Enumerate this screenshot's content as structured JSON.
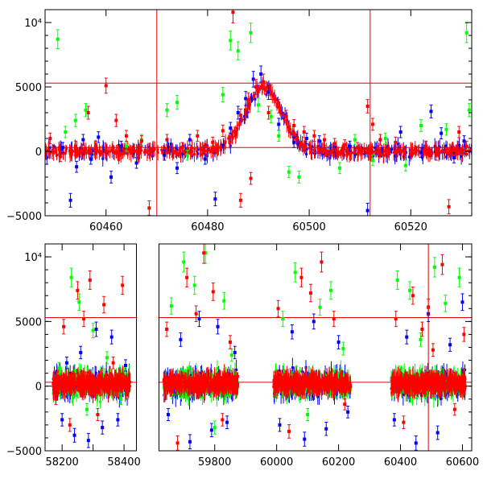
{
  "chart_data": [
    {
      "type": "scatter",
      "panel": "top",
      "title": "",
      "xlabel": "",
      "ylabel": "",
      "xlim": [
        60448,
        60532
      ],
      "ylim": [
        -5000,
        11000
      ],
      "x_ticks": [
        60460,
        60480,
        60500,
        60520
      ],
      "y_ticks": [
        -5000,
        0,
        5000,
        10000
      ],
      "x_tick_labels": [
        "60460",
        "60480",
        "60500",
        "60520"
      ],
      "y_tick_labels": [
        "−5000",
        "0",
        "5000",
        "10⁴"
      ],
      "reference_lines": {
        "horizontal": [
          300,
          5300
        ],
        "vertical": [
          60470,
          60512
        ]
      },
      "series": [
        {
          "color": "#0000ff",
          "points": [
            [
              60451.5,
              300
            ],
            [
              60453,
              -3800
            ],
            [
              60454.2,
              -1200
            ],
            [
              60455.5,
              900
            ],
            [
              60457,
              -600
            ],
            [
              60458.5,
              1100
            ],
            [
              60461,
              -2000
            ],
            [
              60463,
              400
            ],
            [
              60466,
              -900
            ],
            [
              60471.5,
              -300
            ],
            [
              60474,
              -1300
            ],
            [
              60476.5,
              900
            ],
            [
              60479.5,
              -600
            ],
            [
              60481.5,
              -3700
            ],
            [
              60484.5,
              1800
            ],
            [
              60486,
              3000
            ],
            [
              60487.5,
              4100
            ],
            [
              60489,
              5600
            ],
            [
              60490.5,
              6000
            ],
            [
              60492,
              4600
            ],
            [
              60494,
              2100
            ],
            [
              60497,
              700
            ],
            [
              60499.5,
              1000
            ],
            [
              60502,
              800
            ],
            [
              60505,
              300
            ],
            [
              60508,
              400
            ],
            [
              60511.5,
              -4600
            ],
            [
              60514,
              900
            ],
            [
              60518,
              1500
            ],
            [
              60522,
              -100
            ],
            [
              60524,
              3100
            ],
            [
              60526,
              1400
            ],
            [
              60528.5,
              -500
            ],
            [
              60530.5,
              800
            ]
          ]
        },
        {
          "color": "#00ff00",
          "points": [
            [
              60450.5,
              8700
            ],
            [
              60452,
              1500
            ],
            [
              60454,
              2400
            ],
            [
              60456,
              3200
            ],
            [
              60464,
              400
            ],
            [
              60467,
              900
            ],
            [
              60472,
              3200
            ],
            [
              60474,
              3800
            ],
            [
              60476,
              -300
            ],
            [
              60483,
              4400
            ],
            [
              60484.5,
              8600
            ],
            [
              60486,
              7800
            ],
            [
              60488.5,
              9200
            ],
            [
              60490,
              3600
            ],
            [
              60492.5,
              2700
            ],
            [
              60494,
              1200
            ],
            [
              60496,
              -1600
            ],
            [
              60498,
              -2000
            ],
            [
              60506,
              -1300
            ],
            [
              60509,
              900
            ],
            [
              60512.5,
              -700
            ],
            [
              60515,
              1000
            ],
            [
              60519,
              -1100
            ],
            [
              60522,
              2000
            ],
            [
              60527,
              1700
            ],
            [
              60531,
              9200
            ],
            [
              60531.5,
              3200
            ]
          ]
        },
        {
          "color": "#ff0000",
          "points": [
            [
              60449,
              1000
            ],
            [
              60451,
              -400
            ],
            [
              60454,
              400
            ],
            [
              60456.5,
              3000
            ],
            [
              60458,
              400
            ],
            [
              60460,
              5100
            ],
            [
              60462,
              2400
            ],
            [
              60464,
              1200
            ],
            [
              60467,
              800
            ],
            [
              60468.5,
              -4400
            ],
            [
              60472,
              900
            ],
            [
              60475,
              300
            ],
            [
              60478,
              1200
            ],
            [
              60481,
              700
            ],
            [
              60483,
              1600
            ],
            [
              60485,
              10800
            ],
            [
              60486.5,
              2800
            ],
            [
              60488,
              4000
            ],
            [
              60489.5,
              5000
            ],
            [
              60491,
              5400
            ],
            [
              60492.5,
              4600
            ],
            [
              60494,
              3500
            ],
            [
              60495.5,
              2700
            ],
            [
              60497,
              2000
            ],
            [
              60499,
              1500
            ],
            [
              60501,
              1200
            ],
            [
              60503,
              900
            ],
            [
              60505,
              600
            ],
            [
              60507,
              500
            ],
            [
              60509.5,
              300
            ],
            [
              60511.5,
              3500
            ],
            [
              60512.5,
              2100
            ],
            [
              60514,
              900
            ],
            [
              60517,
              700
            ],
            [
              60520,
              -200
            ],
            [
              60523,
              400
            ],
            [
              60525,
              -300
            ],
            [
              60527.5,
              -4300
            ],
            [
              60529.5,
              1500
            ],
            [
              60531,
              400
            ],
            [
              60486.5,
              -3800
            ],
            [
              60488.5,
              -2100
            ],
            [
              60492,
              3000
            ]
          ]
        }
      ]
    },
    {
      "type": "scatter",
      "panel": "bottom",
      "title": "",
      "xlabel": "",
      "ylabel": "",
      "xlim": [
        58145,
        60630
      ],
      "ylim": [
        -5000,
        11000
      ],
      "x_axis_break": [
        58440,
        59620
      ],
      "x_ticks": [
        58200,
        58300,
        58400,
        59800,
        60000,
        60200,
        60400,
        60600
      ],
      "x_tick_labels": [
        "58200",
        "58400",
        "59800",
        "60000",
        "60200",
        "60400",
        "60600"
      ],
      "x_labelled_ticks": [
        58200,
        58400,
        59800,
        60000,
        60200,
        60400,
        60600
      ],
      "y_ticks": [
        -5000,
        0,
        5000,
        10000
      ],
      "y_tick_labels": [
        "−5000",
        "0",
        "5000",
        "10⁴"
      ],
      "reference_lines": {
        "horizontal": [
          300,
          5300
        ],
        "vertical": [
          60490
        ]
      },
      "observing_seasons": [
        [
          58170,
          58420
        ],
        [
          59635,
          59875
        ],
        [
          59990,
          60240
        ],
        [
          60370,
          60610
        ]
      ],
      "series": [
        {
          "color": "#0000ff",
          "points": [
            [
              58200,
              -2600
            ],
            [
              58215,
              1800
            ],
            [
              58240,
              -3800
            ],
            [
              58260,
              2600
            ],
            [
              58285,
              -4200
            ],
            [
              58310,
              4400
            ],
            [
              58330,
              -3200
            ],
            [
              58360,
              3800
            ],
            [
              58380,
              -2600
            ],
            [
              58405,
              1600
            ],
            [
              59650,
              -2200
            ],
            [
              59690,
              3600
            ],
            [
              59720,
              -4300
            ],
            [
              59750,
              5200
            ],
            [
              59790,
              -3400
            ],
            [
              59810,
              4600
            ],
            [
              59840,
              -2800
            ],
            [
              59865,
              2600
            ],
            [
              60010,
              -3000
            ],
            [
              60050,
              4200
            ],
            [
              60090,
              -4100
            ],
            [
              60120,
              5000
            ],
            [
              60160,
              -3300
            ],
            [
              60200,
              3400
            ],
            [
              60230,
              -2000
            ],
            [
              60380,
              -2600
            ],
            [
              60420,
              3800
            ],
            [
              60450,
              -4400
            ],
            [
              60490,
              5600
            ],
            [
              60520,
              -3600
            ],
            [
              60560,
              3200
            ],
            [
              60600,
              6500
            ]
          ]
        },
        {
          "color": "#00ff00",
          "points": [
            [
              58190,
              1400
            ],
            [
              58230,
              8400
            ],
            [
              58255,
              6500
            ],
            [
              58280,
              -1800
            ],
            [
              58300,
              4300
            ],
            [
              58345,
              2200
            ],
            [
              58390,
              -1000
            ],
            [
              59660,
              6200
            ],
            [
              59700,
              9600
            ],
            [
              59735,
              7800
            ],
            [
              59770,
              10300
            ],
            [
              59800,
              -3200
            ],
            [
              59830,
              6600
            ],
            [
              59855,
              2400
            ],
            [
              60020,
              5200
            ],
            [
              60060,
              8800
            ],
            [
              60100,
              -2200
            ],
            [
              60140,
              6100
            ],
            [
              60175,
              7400
            ],
            [
              60215,
              2900
            ],
            [
              60390,
              8200
            ],
            [
              60430,
              7400
            ],
            [
              60465,
              3600
            ],
            [
              60510,
              9200
            ],
            [
              60545,
              6400
            ],
            [
              60590,
              8400
            ]
          ]
        },
        {
          "color": "#ff0000",
          "points": [
            [
              58180,
              -1000
            ],
            [
              58205,
              4600
            ],
            [
              58225,
              -3000
            ],
            [
              58250,
              7400
            ],
            [
              58270,
              5200
            ],
            [
              58290,
              8200
            ],
            [
              58315,
              -2200
            ],
            [
              58335,
              6300
            ],
            [
              58365,
              1800
            ],
            [
              58395,
              7800
            ],
            [
              58410,
              -600
            ],
            [
              59645,
              4400
            ],
            [
              59680,
              -4400
            ],
            [
              59710,
              8400
            ],
            [
              59740,
              5600
            ],
            [
              59765,
              10300
            ],
            [
              59795,
              7300
            ],
            [
              59825,
              -2600
            ],
            [
              59850,
              3400
            ],
            [
              60005,
              6000
            ],
            [
              60040,
              -3500
            ],
            [
              60080,
              8400
            ],
            [
              60110,
              7200
            ],
            [
              60145,
              9600
            ],
            [
              60185,
              5200
            ],
            [
              60220,
              -1400
            ],
            [
              60385,
              5200
            ],
            [
              60410,
              -2800
            ],
            [
              60440,
              7000
            ],
            [
              60470,
              4400
            ],
            [
              60490,
              6100
            ],
            [
              60505,
              2800
            ],
            [
              60535,
              9400
            ],
            [
              60575,
              -1800
            ],
            [
              60605,
              4000
            ]
          ]
        }
      ]
    }
  ]
}
